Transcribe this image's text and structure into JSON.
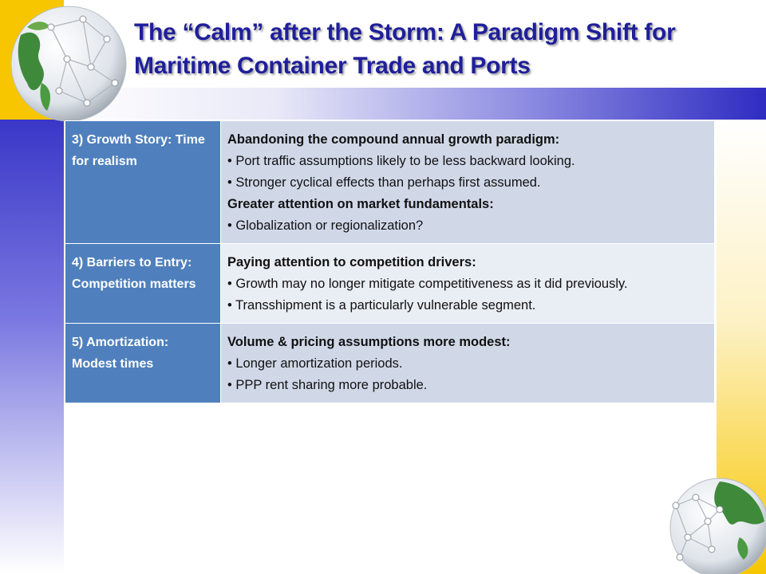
{
  "slide": {
    "title": "The “Calm” after the Storm: A Paradigm Shift for Maritime Container Trade and Ports"
  },
  "colors": {
    "label_cell": "#4f80bd",
    "row_dark": "#d0d8e8",
    "row_light": "#e9edf4",
    "title": "#1f1f9a",
    "accent_yellow": "#f7c600",
    "accent_blue": "#2f2cc2"
  },
  "table": {
    "rows": [
      {
        "label": "3) Growth Story: Time for realism",
        "sections": [
          {
            "heading": "Abandoning the compound annual growth paradigm:",
            "bullets": [
              "Port traffic assumptions likely to be less backward looking.",
              "Stronger cyclical effects than perhaps first assumed."
            ]
          },
          {
            "heading": "Greater attention on market fundamentals:",
            "bullets": [
              "Globalization or regionalization?"
            ]
          }
        ]
      },
      {
        "label": "4) Barriers to Entry: Competition matters",
        "sections": [
          {
            "heading": "Paying attention to competition drivers:",
            "bullets": [
              "Growth may no longer mitigate competitiveness as it did previously.",
              "Transshipment is a particularly vulnerable segment."
            ]
          }
        ]
      },
      {
        "label": "5) Amortization: Modest times",
        "sections": [
          {
            "heading": "Volume & pricing assumptions more modest:",
            "bullets": [
              "Longer amortization periods.",
              "PPP rent sharing more probable."
            ]
          }
        ]
      }
    ]
  }
}
